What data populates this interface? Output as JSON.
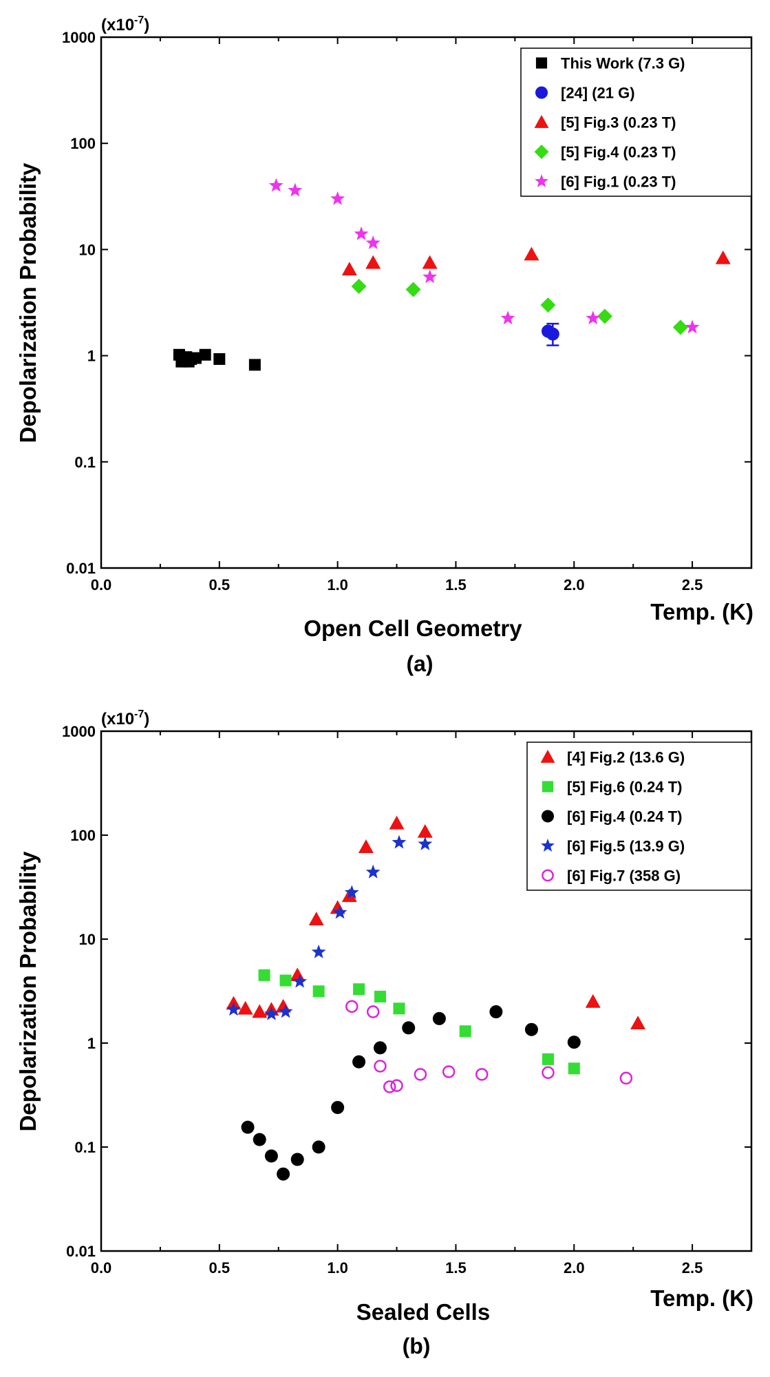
{
  "chart_data": [
    {
      "type": "scatter",
      "panel_label": "(a)",
      "xlabel": "Open Cell Geometry",
      "x_unit_label": "Temp. (K)",
      "ylabel": "Depolarization Probability",
      "y_scale_note_base": "(x10",
      "y_scale_note_exp": "-7",
      "y_scale_note_end": ")",
      "xlim": [
        0.0,
        2.75
      ],
      "ylim": [
        0.01,
        1000
      ],
      "yscale": "log",
      "x_ticks": [
        "0.0",
        "0.5",
        "1.0",
        "1.5",
        "2.0",
        "2.5"
      ],
      "y_ticks": [
        "0.01",
        "0.1",
        "1",
        "10",
        "100",
        "1000"
      ],
      "legend_position": "top-right",
      "series": [
        {
          "name": "This Work (7.3 G)",
          "marker": "square",
          "color": "#000000",
          "points": [
            [
              0.33,
              1.02
            ],
            [
              0.34,
              0.88
            ],
            [
              0.35,
              0.92
            ],
            [
              0.36,
              0.97
            ],
            [
              0.37,
              0.88
            ],
            [
              0.38,
              0.93
            ],
            [
              0.4,
              0.95
            ],
            [
              0.44,
              1.02
            ],
            [
              0.5,
              0.93
            ],
            [
              0.65,
              0.82
            ]
          ]
        },
        {
          "name": "[24] (21 G)",
          "marker": "circle",
          "color": "#1a1adc",
          "points": [
            [
              1.89,
              1.7
            ],
            [
              1.91,
              1.6
            ]
          ],
          "error_bar": {
            "x": 1.91,
            "low": 1.25,
            "high": 2.0
          }
        },
        {
          "name": "[5] Fig.3 (0.23 T)",
          "marker": "triangle",
          "color": "#ee1111",
          "points": [
            [
              1.05,
              6.5
            ],
            [
              1.15,
              7.5
            ],
            [
              1.39,
              7.5
            ],
            [
              1.82,
              9.0
            ],
            [
              2.63,
              8.3
            ]
          ]
        },
        {
          "name": "[5] Fig.4 (0.23 T)",
          "marker": "diamond",
          "color": "#33dd11",
          "points": [
            [
              1.09,
              4.5
            ],
            [
              1.32,
              4.2
            ],
            [
              1.89,
              3.0
            ],
            [
              2.13,
              2.35
            ],
            [
              2.45,
              1.85
            ]
          ]
        },
        {
          "name": "[6] Fig.1 (0.23 T)",
          "marker": "star",
          "color": "#ee33ee",
          "points": [
            [
              0.74,
              40
            ],
            [
              0.82,
              36
            ],
            [
              1.0,
              30
            ],
            [
              1.1,
              14
            ],
            [
              1.15,
              11.5
            ],
            [
              1.39,
              5.5
            ],
            [
              1.72,
              2.25
            ],
            [
              2.08,
              2.25
            ],
            [
              2.5,
              1.85
            ]
          ]
        }
      ]
    },
    {
      "type": "scatter",
      "panel_label": "(b)",
      "xlabel": "Sealed Cells",
      "x_unit_label": "Temp. (K)",
      "ylabel": "Depolarization Probability",
      "y_scale_note_base": "(x10",
      "y_scale_note_exp": "-7",
      "y_scale_note_end": ")",
      "xlim": [
        0.0,
        2.75
      ],
      "ylim": [
        0.01,
        1000
      ],
      "yscale": "log",
      "x_ticks": [
        "0.0",
        "0.5",
        "1.0",
        "1.5",
        "2.0",
        "2.5"
      ],
      "y_ticks": [
        "0.01",
        "0.1",
        "1",
        "10",
        "100",
        "1000"
      ],
      "legend_position": "top-right",
      "series": [
        {
          "name": "[4] Fig.2 (13.6 G)",
          "marker": "triangle",
          "color": "#ee1111",
          "points": [
            [
              0.56,
              2.4
            ],
            [
              0.61,
              2.15
            ],
            [
              0.67,
              2.0
            ],
            [
              0.72,
              2.1
            ],
            [
              0.77,
              2.25
            ],
            [
              0.83,
              4.5
            ],
            [
              0.91,
              15.5
            ],
            [
              1.0,
              20
            ],
            [
              1.05,
              26
            ],
            [
              1.12,
              77
            ],
            [
              1.25,
              130
            ],
            [
              1.37,
              108
            ],
            [
              2.08,
              2.5
            ],
            [
              2.27,
              1.55
            ]
          ]
        },
        {
          "name": "[5] Fig.6 (0.24 T)",
          "marker": "square",
          "color": "#33dd33",
          "points": [
            [
              0.69,
              4.5
            ],
            [
              0.78,
              4.0
            ],
            [
              0.92,
              3.15
            ],
            [
              1.09,
              3.3
            ],
            [
              1.18,
              2.8
            ],
            [
              1.26,
              2.15
            ],
            [
              1.54,
              1.3
            ],
            [
              1.89,
              0.7
            ],
            [
              2.0,
              0.57
            ]
          ]
        },
        {
          "name": "[6] Fig.4 (0.24 T)",
          "marker": "circle",
          "color": "#000000",
          "points": [
            [
              0.62,
              0.155
            ],
            [
              0.67,
              0.118
            ],
            [
              0.72,
              0.082
            ],
            [
              0.77,
              0.055
            ],
            [
              0.83,
              0.076
            ],
            [
              0.92,
              0.1
            ],
            [
              1.0,
              0.24
            ],
            [
              1.09,
              0.66
            ],
            [
              1.18,
              0.9
            ],
            [
              1.3,
              1.4
            ],
            [
              1.43,
              1.72
            ],
            [
              1.67,
              2.0
            ],
            [
              1.82,
              1.35
            ],
            [
              2.0,
              1.02
            ]
          ]
        },
        {
          "name": "[6] Fig.5 (13.9 G)",
          "marker": "star",
          "color": "#1a33cc",
          "points": [
            [
              0.56,
              2.1
            ],
            [
              0.72,
              1.9
            ],
            [
              0.78,
              2.0
            ],
            [
              0.84,
              3.9
            ],
            [
              0.92,
              7.5
            ],
            [
              1.01,
              18
            ],
            [
              1.06,
              28
            ],
            [
              1.15,
              44
            ],
            [
              1.26,
              85
            ],
            [
              1.37,
              82
            ]
          ]
        },
        {
          "name": "[6] Fig.7 (358 G)",
          "marker": "open-circle",
          "color": "#dd22dd",
          "points": [
            [
              1.06,
              2.25
            ],
            [
              1.15,
              2.0
            ],
            [
              1.18,
              0.6
            ],
            [
              1.22,
              0.38
            ],
            [
              1.25,
              0.39
            ],
            [
              1.35,
              0.5
            ],
            [
              1.47,
              0.53
            ],
            [
              1.61,
              0.5
            ],
            [
              1.89,
              0.52
            ],
            [
              2.22,
              0.46
            ]
          ]
        }
      ]
    }
  ]
}
